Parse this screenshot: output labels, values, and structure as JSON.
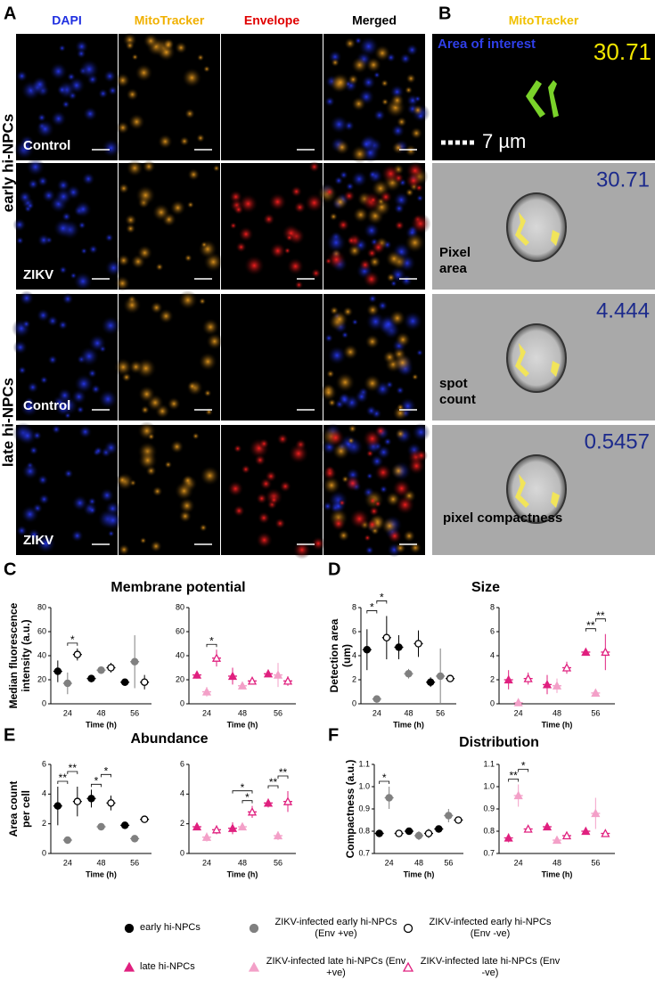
{
  "figure": {
    "panels": {
      "a": "A",
      "b": "B",
      "c": "C",
      "d": "D",
      "e": "E",
      "f": "F"
    },
    "channels": [
      "DAPI",
      "MitoTracker",
      "Envelope",
      "Merged"
    ],
    "b_header": "MitoTracker",
    "groups": [
      "early hi-NPCs",
      "late hi-NPCs"
    ],
    "conditions": [
      "Control",
      "ZIKV",
      "Control",
      "ZIKV"
    ],
    "b_images": [
      {
        "label": "Area of interest",
        "value": 30.71,
        "scale": "7 µm"
      },
      {
        "label": "Pixel area",
        "value": 30.71
      },
      {
        "label": "spot count",
        "value": 4.444
      },
      {
        "label": "pixel compactness",
        "value": 0.5457
      }
    ]
  },
  "chart_data": [
    {
      "type": "dot",
      "title": "Membrane potential",
      "ylabel": "Median fluorescence intensity (a.u.)",
      "xlabel": "Time (h)",
      "categories": [
        "24",
        "48",
        "56"
      ],
      "ylim": [
        0,
        80
      ],
      "yticks": [
        0,
        20,
        40,
        60,
        80
      ],
      "series": [
        {
          "name": "early hi-NPCs",
          "color": "#000000",
          "marker": "circle",
          "filled": true,
          "values": [
            27,
            21,
            18
          ],
          "errors": [
            9,
            3,
            1
          ]
        },
        {
          "name": "ZIKV-infected early hi-NPCs (Env +ve)",
          "color": "#808080",
          "marker": "circle",
          "filled": true,
          "values": [
            17,
            28,
            35
          ],
          "errors": [
            9,
            3,
            22
          ]
        },
        {
          "name": "ZIKV-infected early hi-NPCs (Env -ve)",
          "color": "#000000",
          "marker": "circle",
          "filled": false,
          "values": [
            41,
            30,
            18
          ],
          "errors": [
            5,
            4,
            6
          ]
        }
      ],
      "annotations": [
        {
          "text": "*",
          "category": 0,
          "between": [
            1,
            2
          ]
        }
      ]
    },
    {
      "type": "dot",
      "xlabel": "Time (h)",
      "categories": [
        "24",
        "48",
        "56"
      ],
      "ylim": [
        0,
        80
      ],
      "yticks": [
        0,
        20,
        40,
        60,
        80
      ],
      "series": [
        {
          "name": "late hi-NPCs",
          "color": "#e0207f",
          "marker": "triangle",
          "filled": true,
          "values": [
            24,
            23,
            25
          ],
          "errors": [
            3,
            7,
            2
          ]
        },
        {
          "name": "ZIKV-infected late hi-NPCs (Env +ve)",
          "color": "#f3a0c8",
          "marker": "triangle",
          "filled": true,
          "values": [
            10,
            15,
            24
          ],
          "errors": [
            4,
            1,
            10
          ]
        },
        {
          "name": "ZIKV-infected late hi-NPCs (Env -ve)",
          "color": "#e0207f",
          "marker": "triangle",
          "filled": false,
          "values": [
            38,
            19,
            19
          ],
          "errors": [
            7,
            3,
            4
          ]
        }
      ],
      "annotations": [
        {
          "text": "*",
          "category": 0,
          "between": [
            1,
            2
          ]
        }
      ]
    },
    {
      "type": "dot",
      "title": "Size",
      "ylabel": "Detection area (um)",
      "xlabel": "Time (h)",
      "categories": [
        "24",
        "48",
        "56"
      ],
      "ylim": [
        0,
        8
      ],
      "yticks": [
        0,
        2,
        4,
        6,
        8
      ],
      "series": [
        {
          "name": "early hi-NPCs",
          "color": "#000000",
          "marker": "circle",
          "filled": true,
          "values": [
            4.5,
            4.7,
            1.8
          ],
          "errors": [
            1.7,
            1.0,
            0.4
          ]
        },
        {
          "name": "ZIKV-infected early hi-NPCs (Env +ve)",
          "color": "#808080",
          "marker": "circle",
          "filled": true,
          "values": [
            0.4,
            2.5,
            2.3
          ],
          "errors": [
            0.3,
            0.4,
            2.3
          ]
        },
        {
          "name": "ZIKV-infected early hi-NPCs (Env -ve)",
          "color": "#000000",
          "marker": "circle",
          "filled": false,
          "values": [
            5.5,
            5.0,
            2.1
          ],
          "errors": [
            1.8,
            1.1,
            0.1
          ]
        }
      ],
      "annotations": [
        {
          "text": "*",
          "category": 0,
          "between": [
            0,
            1
          ]
        },
        {
          "text": "*",
          "category": 0,
          "between": [
            1,
            2
          ]
        }
      ]
    },
    {
      "type": "dot",
      "xlabel": "Time (h)",
      "categories": [
        "24",
        "48",
        "56"
      ],
      "ylim": [
        0,
        8
      ],
      "yticks": [
        0,
        2,
        4,
        6,
        8
      ],
      "series": [
        {
          "name": "late hi-NPCs",
          "color": "#e0207f",
          "marker": "triangle",
          "filled": true,
          "values": [
            2.0,
            1.6,
            4.3
          ],
          "errors": [
            0.8,
            0.8,
            0.05
          ]
        },
        {
          "name": "ZIKV-infected late hi-NPCs (Env +ve)",
          "color": "#f3a0c8",
          "marker": "triangle",
          "filled": true,
          "values": [
            0.1,
            1.5,
            0.9
          ],
          "errors": [
            0.1,
            0.6,
            0.1
          ]
        },
        {
          "name": "ZIKV-infected late hi-NPCs (Env -ve)",
          "color": "#e0207f",
          "marker": "triangle",
          "filled": false,
          "values": [
            2.1,
            3.0,
            4.3
          ],
          "errors": [
            0.5,
            0.5,
            1.5
          ]
        }
      ],
      "annotations": [
        {
          "text": "**",
          "category": 2,
          "between": [
            0,
            1
          ]
        },
        {
          "text": "**",
          "category": 2,
          "between": [
            1,
            2
          ]
        }
      ]
    },
    {
      "type": "dot",
      "title": "Abundance",
      "ylabel": "Area count per cell",
      "xlabel": "Time (h)",
      "categories": [
        "24",
        "48",
        "56"
      ],
      "ylim": [
        0,
        6
      ],
      "yticks": [
        0,
        2,
        4,
        6
      ],
      "series": [
        {
          "name": "early hi-NPCs",
          "color": "#000000",
          "marker": "circle",
          "filled": true,
          "values": [
            3.2,
            3.7,
            1.9
          ],
          "errors": [
            1.3,
            0.6,
            0.1
          ]
        },
        {
          "name": "ZIKV-infected early hi-NPCs (Env +ve)",
          "color": "#808080",
          "marker": "circle",
          "filled": true,
          "values": [
            0.9,
            1.8,
            1.0
          ],
          "errors": [
            0.05,
            0.1,
            0.1
          ]
        },
        {
          "name": "ZIKV-infected early hi-NPCs (Env -ve)",
          "color": "#000000",
          "marker": "circle",
          "filled": false,
          "values": [
            3.5,
            3.4,
            2.3
          ],
          "errors": [
            1.0,
            0.5,
            0.1
          ]
        }
      ],
      "annotations": [
        {
          "text": "**",
          "category": 0,
          "between": [
            0,
            1
          ]
        },
        {
          "text": "**",
          "category": 0,
          "between": [
            1,
            2
          ]
        },
        {
          "text": "*",
          "category": 1,
          "between": [
            0,
            1
          ]
        },
        {
          "text": "*",
          "category": 1,
          "between": [
            1,
            2
          ]
        }
      ]
    },
    {
      "type": "dot",
      "xlabel": "Time (h)",
      "categories": [
        "24",
        "48",
        "56"
      ],
      "ylim": [
        0,
        6
      ],
      "yticks": [
        0,
        2,
        4,
        6
      ],
      "series": [
        {
          "name": "late hi-NPCs",
          "color": "#e0207f",
          "marker": "triangle",
          "filled": true,
          "values": [
            1.8,
            1.7,
            3.4
          ],
          "errors": [
            0.15,
            0.4,
            0.3
          ]
        },
        {
          "name": "ZIKV-infected late hi-NPCs (Env +ve)",
          "color": "#f3a0c8",
          "marker": "triangle",
          "filled": true,
          "values": [
            1.1,
            1.8,
            1.2
          ],
          "errors": [
            0.3,
            0.1,
            0.3
          ]
        },
        {
          "name": "ZIKV-infected late hi-NPCs (Env -ve)",
          "color": "#e0207f",
          "marker": "triangle",
          "filled": false,
          "values": [
            1.6,
            2.8,
            3.5
          ],
          "errors": [
            0.3,
            0.4,
            0.7
          ]
        }
      ],
      "annotations": [
        {
          "text": "*",
          "category": 1,
          "between": [
            1,
            2
          ]
        },
        {
          "text": "*",
          "category": 1,
          "between": [
            0,
            2
          ]
        },
        {
          "text": "**",
          "category": 2,
          "between": [
            0,
            1
          ]
        },
        {
          "text": "**",
          "category": 2,
          "between": [
            1,
            2
          ]
        }
      ]
    },
    {
      "type": "dot",
      "title": "Distribution",
      "ylabel": "Compactness (a.u.)",
      "xlabel": "Time (h)",
      "categories": [
        "24",
        "48",
        "56"
      ],
      "ylim": [
        0.7,
        1.1
      ],
      "yticks": [
        0.7,
        0.8,
        0.9,
        {
          "value": 1,
          "label": "1.0"
        },
        1.1
      ],
      "series": [
        {
          "name": "early hi-NPCs",
          "color": "#000000",
          "marker": "circle",
          "filled": true,
          "values": [
            0.79,
            0.8,
            0.81
          ],
          "errors": [
            0.005,
            0.01,
            0.01
          ]
        },
        {
          "name": "ZIKV-infected early hi-NPCs (Env +ve)",
          "color": "#808080",
          "marker": "circle",
          "filled": true,
          "values": [
            0.95,
            0.78,
            0.87
          ],
          "errors": [
            0.05,
            0.02,
            0.03
          ]
        },
        {
          "name": "ZIKV-infected early hi-NPCs (Env -ve)",
          "color": "#000000",
          "marker": "circle",
          "filled": false,
          "values": [
            0.79,
            0.79,
            0.85
          ],
          "errors": [
            0.01,
            0.02,
            0.01
          ]
        }
      ],
      "annotations": [
        {
          "text": "*",
          "category": 0,
          "between": [
            0,
            1
          ]
        }
      ]
    },
    {
      "type": "dot",
      "xlabel": "Time (h)",
      "categories": [
        "24",
        "48",
        "56"
      ],
      "ylim": [
        0.7,
        1.1
      ],
      "yticks": [
        0.7,
        0.8,
        0.9,
        {
          "value": 1,
          "label": "1.0"
        },
        1.1
      ],
      "series": [
        {
          "name": "late hi-NPCs",
          "color": "#e0207f",
          "marker": "triangle",
          "filled": true,
          "values": [
            0.77,
            0.82,
            0.8
          ],
          "errors": [
            0.02,
            0.01,
            0.01
          ]
        },
        {
          "name": "ZIKV-infected late hi-NPCs (Env +ve)",
          "color": "#f3a0c8",
          "marker": "triangle",
          "filled": true,
          "values": [
            0.96,
            0.76,
            0.88
          ],
          "errors": [
            0.05,
            0.01,
            0.07
          ]
        },
        {
          "name": "ZIKV-infected late hi-NPCs (Env -ve)",
          "color": "#e0207f",
          "marker": "triangle",
          "filled": false,
          "values": [
            0.81,
            0.78,
            0.79
          ],
          "errors": [
            0.01,
            0.01,
            0.01
          ]
        }
      ],
      "annotations": [
        {
          "text": "**",
          "category": 0,
          "between": [
            0,
            1
          ]
        },
        {
          "text": "*",
          "category": 0,
          "between": [
            1,
            2
          ]
        }
      ]
    }
  ]
}
